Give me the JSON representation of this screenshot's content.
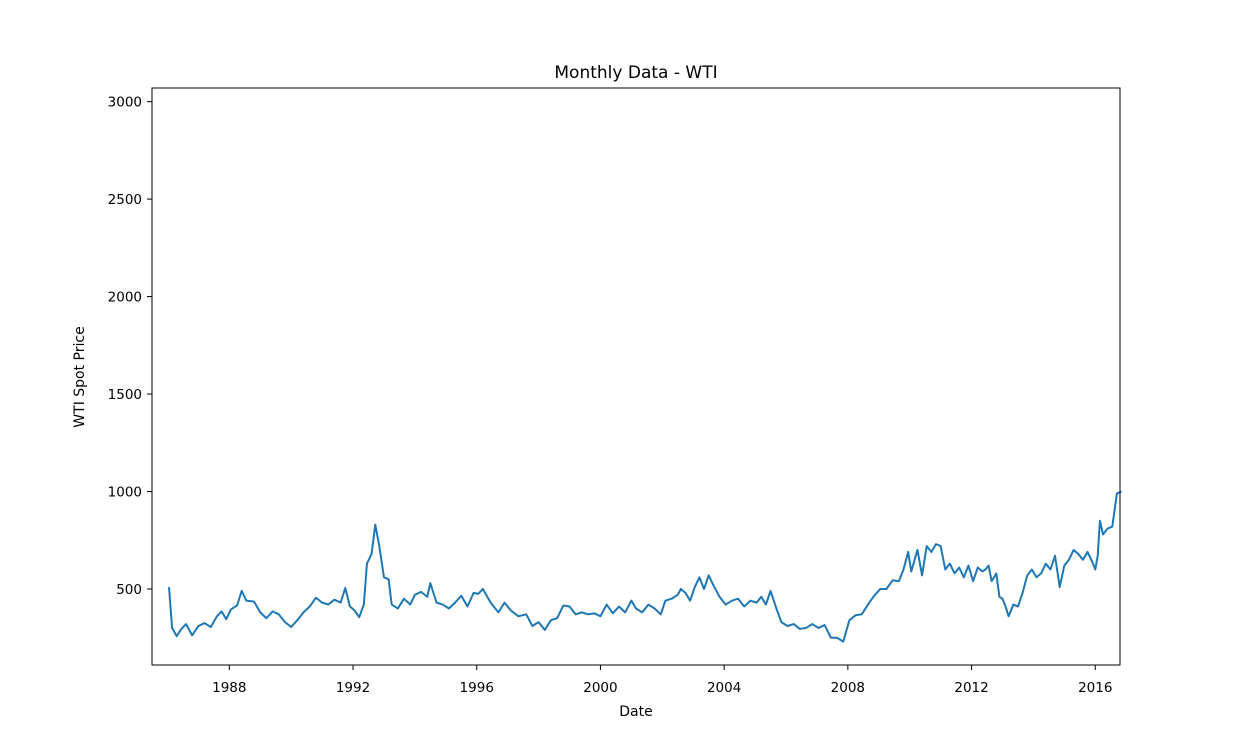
{
  "chart_data": {
    "type": "line",
    "title": "Monthly Data - WTI",
    "xlabel": "Date",
    "ylabel": "WTI Spot Price",
    "xlim": [
      1985.5,
      2016.8
    ],
    "ylim": [
      110,
      3070
    ],
    "x_ticks": [
      {
        "value": 1988,
        "label": "1988"
      },
      {
        "value": 1992,
        "label": "1992"
      },
      {
        "value": 1996,
        "label": "1996"
      },
      {
        "value": 2000,
        "label": "2000"
      },
      {
        "value": 2004,
        "label": "2004"
      },
      {
        "value": 2008,
        "label": "2008"
      },
      {
        "value": 2012,
        "label": "2012"
      },
      {
        "value": 2016,
        "label": "2016"
      }
    ],
    "y_ticks": [
      {
        "value": 500,
        "label": "500"
      },
      {
        "value": 1000,
        "label": "1000"
      },
      {
        "value": 1500,
        "label": "1500"
      },
      {
        "value": 2000,
        "label": "2000"
      },
      {
        "value": 2500,
        "label": "2500"
      },
      {
        "value": 3000,
        "label": "3000"
      }
    ],
    "grid": false,
    "series": [
      {
        "color": "#1f77b4",
        "points": [
          [
            1986.05,
            510
          ],
          [
            1986.15,
            300
          ],
          [
            1986.3,
            258
          ],
          [
            1986.45,
            295
          ],
          [
            1986.6,
            320
          ],
          [
            1986.8,
            262
          ],
          [
            1987.0,
            310
          ],
          [
            1987.2,
            325
          ],
          [
            1987.4,
            305
          ],
          [
            1987.6,
            360
          ],
          [
            1987.75,
            385
          ],
          [
            1987.9,
            345
          ],
          [
            1988.05,
            395
          ],
          [
            1988.25,
            415
          ],
          [
            1988.4,
            490
          ],
          [
            1988.55,
            440
          ],
          [
            1988.8,
            435
          ],
          [
            1989.0,
            380
          ],
          [
            1989.2,
            350
          ],
          [
            1989.4,
            385
          ],
          [
            1989.6,
            370
          ],
          [
            1989.8,
            330
          ],
          [
            1990.0,
            305
          ],
          [
            1990.2,
            340
          ],
          [
            1990.4,
            380
          ],
          [
            1990.6,
            410
          ],
          [
            1990.8,
            455
          ],
          [
            1991.0,
            430
          ],
          [
            1991.2,
            420
          ],
          [
            1991.4,
            445
          ],
          [
            1991.6,
            430
          ],
          [
            1991.75,
            505
          ],
          [
            1991.9,
            410
          ],
          [
            1992.05,
            390
          ],
          [
            1992.2,
            355
          ],
          [
            1992.35,
            420
          ],
          [
            1992.45,
            630
          ],
          [
            1992.6,
            680
          ],
          [
            1992.72,
            830
          ],
          [
            1992.85,
            720
          ],
          [
            1993.0,
            560
          ],
          [
            1993.15,
            550
          ],
          [
            1993.25,
            420
          ],
          [
            1993.45,
            400
          ],
          [
            1993.65,
            450
          ],
          [
            1993.85,
            420
          ],
          [
            1994.0,
            470
          ],
          [
            1994.2,
            485
          ],
          [
            1994.4,
            460
          ],
          [
            1994.5,
            530
          ],
          [
            1994.7,
            430
          ],
          [
            1994.9,
            420
          ],
          [
            1995.1,
            400
          ],
          [
            1995.3,
            430
          ],
          [
            1995.5,
            465
          ],
          [
            1995.7,
            410
          ],
          [
            1995.9,
            480
          ],
          [
            1996.05,
            475
          ],
          [
            1996.2,
            500
          ],
          [
            1996.45,
            430
          ],
          [
            1996.7,
            380
          ],
          [
            1996.9,
            430
          ],
          [
            1997.1,
            390
          ],
          [
            1997.35,
            360
          ],
          [
            1997.6,
            370
          ],
          [
            1997.8,
            310
          ],
          [
            1998.0,
            330
          ],
          [
            1998.2,
            290
          ],
          [
            1998.4,
            340
          ],
          [
            1998.6,
            350
          ],
          [
            1998.8,
            415
          ],
          [
            1999.0,
            410
          ],
          [
            1999.2,
            370
          ],
          [
            1999.4,
            380
          ],
          [
            1999.6,
            370
          ],
          [
            1999.8,
            375
          ],
          [
            2000.0,
            360
          ],
          [
            2000.2,
            420
          ],
          [
            2000.4,
            375
          ],
          [
            2000.6,
            410
          ],
          [
            2000.8,
            380
          ],
          [
            2001.0,
            440
          ],
          [
            2001.15,
            400
          ],
          [
            2001.35,
            380
          ],
          [
            2001.55,
            420
          ],
          [
            2001.75,
            400
          ],
          [
            2001.95,
            370
          ],
          [
            2002.1,
            440
          ],
          [
            2002.3,
            450
          ],
          [
            2002.5,
            470
          ],
          [
            2002.6,
            500
          ],
          [
            2002.75,
            480
          ],
          [
            2002.9,
            440
          ],
          [
            2003.05,
            510
          ],
          [
            2003.2,
            560
          ],
          [
            2003.35,
            500
          ],
          [
            2003.5,
            570
          ],
          [
            2003.65,
            520
          ],
          [
            2003.85,
            460
          ],
          [
            2004.05,
            420
          ],
          [
            2004.25,
            440
          ],
          [
            2004.45,
            450
          ],
          [
            2004.65,
            410
          ],
          [
            2004.85,
            440
          ],
          [
            2005.05,
            430
          ],
          [
            2005.2,
            460
          ],
          [
            2005.35,
            420
          ],
          [
            2005.5,
            490
          ],
          [
            2005.7,
            395
          ],
          [
            2005.85,
            330
          ],
          [
            2006.05,
            310
          ],
          [
            2006.25,
            320
          ],
          [
            2006.45,
            295
          ],
          [
            2006.65,
            300
          ],
          [
            2006.85,
            320
          ],
          [
            2007.05,
            300
          ],
          [
            2007.25,
            315
          ],
          [
            2007.45,
            250
          ],
          [
            2007.65,
            250
          ],
          [
            2007.85,
            230
          ],
          [
            2008.05,
            340
          ],
          [
            2008.25,
            365
          ],
          [
            2008.45,
            370
          ],
          [
            2008.65,
            420
          ],
          [
            2008.85,
            465
          ],
          [
            2009.05,
            500
          ],
          [
            2009.25,
            500
          ],
          [
            2009.45,
            545
          ],
          [
            2009.65,
            540
          ],
          [
            2009.8,
            600
          ],
          [
            2009.95,
            690
          ],
          [
            2010.05,
            590
          ],
          [
            2010.25,
            700
          ],
          [
            2010.4,
            570
          ],
          [
            2010.55,
            720
          ],
          [
            2010.7,
            690
          ],
          [
            2010.85,
            730
          ],
          [
            2011.0,
            720
          ],
          [
            2011.15,
            600
          ],
          [
            2011.3,
            630
          ],
          [
            2011.45,
            580
          ],
          [
            2011.6,
            610
          ],
          [
            2011.75,
            560
          ],
          [
            2011.9,
            620
          ],
          [
            2012.05,
            540
          ],
          [
            2012.2,
            610
          ],
          [
            2012.35,
            590
          ],
          [
            2012.45,
            600
          ],
          [
            2012.55,
            620
          ],
          [
            2012.65,
            540
          ],
          [
            2012.8,
            580
          ],
          [
            2012.9,
            460
          ],
          [
            2013.0,
            450
          ],
          [
            2013.1,
            410
          ],
          [
            2013.2,
            360
          ],
          [
            2013.35,
            420
          ],
          [
            2013.5,
            410
          ],
          [
            2013.65,
            480
          ],
          [
            2013.8,
            570
          ],
          [
            2013.95,
            600
          ],
          [
            2014.1,
            560
          ],
          [
            2014.25,
            580
          ],
          [
            2014.4,
            630
          ],
          [
            2014.55,
            600
          ],
          [
            2014.7,
            670
          ],
          [
            2014.85,
            510
          ],
          [
            2015.0,
            620
          ],
          [
            2015.15,
            650
          ],
          [
            2015.3,
            700
          ],
          [
            2015.45,
            680
          ],
          [
            2015.6,
            650
          ],
          [
            2015.75,
            690
          ],
          [
            2015.9,
            640
          ],
          [
            2016.0,
            600
          ],
          [
            2016.08,
            670
          ],
          [
            2016.15,
            850
          ],
          [
            2016.25,
            780
          ],
          [
            2016.4,
            810
          ],
          [
            2016.55,
            820
          ],
          [
            2016.7,
            990
          ],
          [
            2016.85,
            1000
          ]
        ]
      }
    ]
  }
}
